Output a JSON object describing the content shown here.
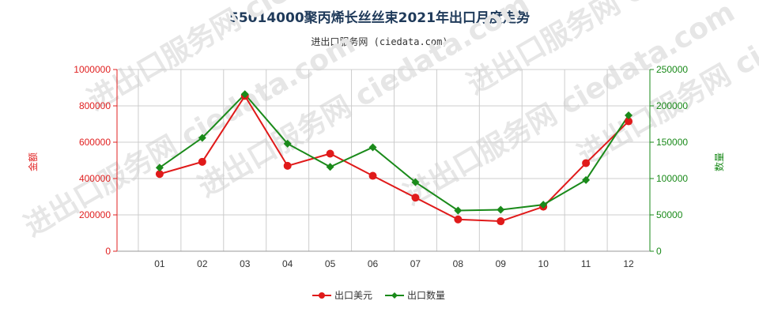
{
  "header": {
    "title": "55014000聚丙烯长丝丝束2021年出口月度走势",
    "subtitle": "进出口服务网 (ciedata.com)"
  },
  "watermark": "进出口服务网 ciedata.com",
  "colors": {
    "series1": "#e01a1a",
    "series2": "#1a8a1a",
    "grid": "#cccccc"
  },
  "chart_data": {
    "type": "line",
    "categories": [
      "01",
      "02",
      "03",
      "04",
      "05",
      "06",
      "07",
      "08",
      "09",
      "10",
      "11",
      "12"
    ],
    "y_left": {
      "label": "金额",
      "min": 0,
      "max": 1000000,
      "ticks": [
        0,
        200000,
        400000,
        600000,
        800000,
        1000000
      ],
      "tick_labels": [
        "0",
        "200000",
        "400000",
        "600000",
        "800000",
        "1000000"
      ]
    },
    "y_right": {
      "label": "数量",
      "min": 0,
      "max": 250000,
      "ticks": [
        0,
        50000,
        100000,
        150000,
        200000,
        250000
      ],
      "tick_labels": [
        "0",
        "50000",
        "100000",
        "150000",
        "200000",
        "250000"
      ]
    },
    "series": [
      {
        "name": "出口美元",
        "axis": "left",
        "marker": "circle",
        "values": [
          425000,
          492000,
          855000,
          470000,
          537000,
          415000,
          295000,
          175000,
          165000,
          245000,
          485000,
          715000
        ]
      },
      {
        "name": "出口数量",
        "axis": "right",
        "marker": "diamond",
        "values": [
          115000,
          156000,
          216000,
          148000,
          116000,
          143000,
          95000,
          56000,
          57000,
          64000,
          98000,
          187000
        ]
      }
    ],
    "grid": true,
    "legend": "bottom-center"
  }
}
